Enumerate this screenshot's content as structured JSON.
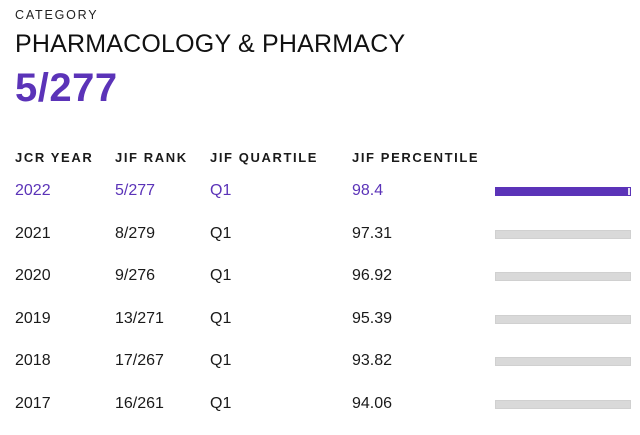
{
  "category": {
    "label": "CATEGORY",
    "name": "PHARMACOLOGY & PHARMACY",
    "rank": "5/277"
  },
  "table": {
    "headers": {
      "year": "JCR YEAR",
      "rank": "JIF RANK",
      "quartile": "JIF QUARTILE",
      "percentile": "JIF PERCENTILE"
    },
    "rows": [
      {
        "year": "2022",
        "rank": "5/277",
        "quartile": "Q1",
        "percentile": "98.4",
        "percentile_value": 98.4
      },
      {
        "year": "2021",
        "rank": "8/279",
        "quartile": "Q1",
        "percentile": "97.31",
        "percentile_value": 97.31
      },
      {
        "year": "2020",
        "rank": "9/276",
        "quartile": "Q1",
        "percentile": "96.92",
        "percentile_value": 96.92
      },
      {
        "year": "2019",
        "rank": "13/271",
        "quartile": "Q1",
        "percentile": "95.39",
        "percentile_value": 95.39
      },
      {
        "year": "2018",
        "rank": "17/267",
        "quartile": "Q1",
        "percentile": "93.82",
        "percentile_value": 93.82
      },
      {
        "year": "2017",
        "rank": "16/261",
        "quartile": "Q1",
        "percentile": "94.06",
        "percentile_value": 94.06
      }
    ]
  },
  "colors": {
    "accent": "#5b33b8",
    "bar_inactive": "#d9d9d9"
  }
}
